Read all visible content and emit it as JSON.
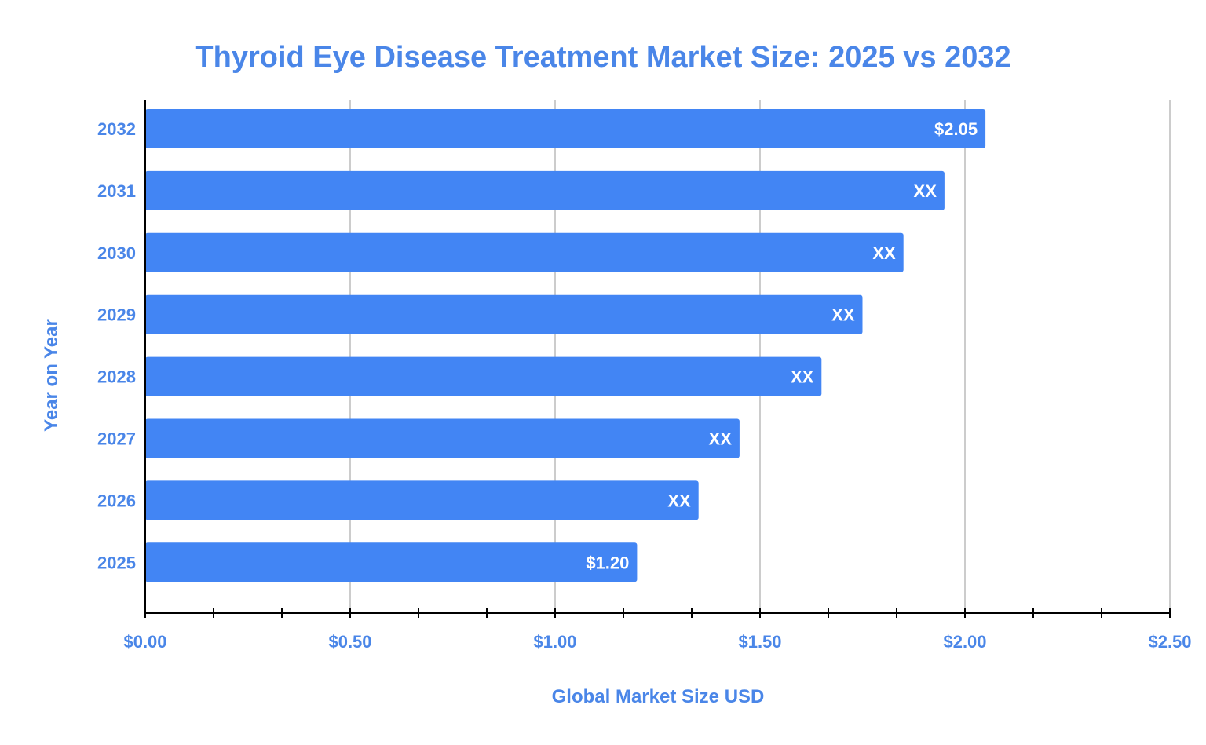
{
  "chart_data": {
    "type": "bar",
    "orientation": "horizontal",
    "title": "Thyroid Eye Disease Treatment Market Size: 2025 vs 2032",
    "xlabel": "Global Market Size USD",
    "ylabel": "Year on Year",
    "categories": [
      "2032",
      "2031",
      "2030",
      "2029",
      "2028",
      "2027",
      "2026",
      "2025"
    ],
    "values": [
      2.05,
      1.95,
      1.85,
      1.75,
      1.65,
      1.45,
      1.35,
      1.2
    ],
    "data_labels": [
      "$2.05",
      "XX",
      "XX",
      "XX",
      "XX",
      "XX",
      "XX",
      "$1.20"
    ],
    "xlim": [
      0,
      2.5
    ],
    "x_ticks": [
      0,
      0.5,
      1.0,
      1.5,
      2.0,
      2.5
    ],
    "x_tick_labels": [
      "$0.00",
      "$0.50",
      "$1.00",
      "$1.50",
      "$2.00",
      "$2.50"
    ],
    "grid": "vertical",
    "legend": "none",
    "colors": {
      "bar": "#4285f4",
      "text": "#4a86e8",
      "gridline": "#cccccc",
      "axis": "#000000",
      "data_label": "#ffffff"
    }
  }
}
